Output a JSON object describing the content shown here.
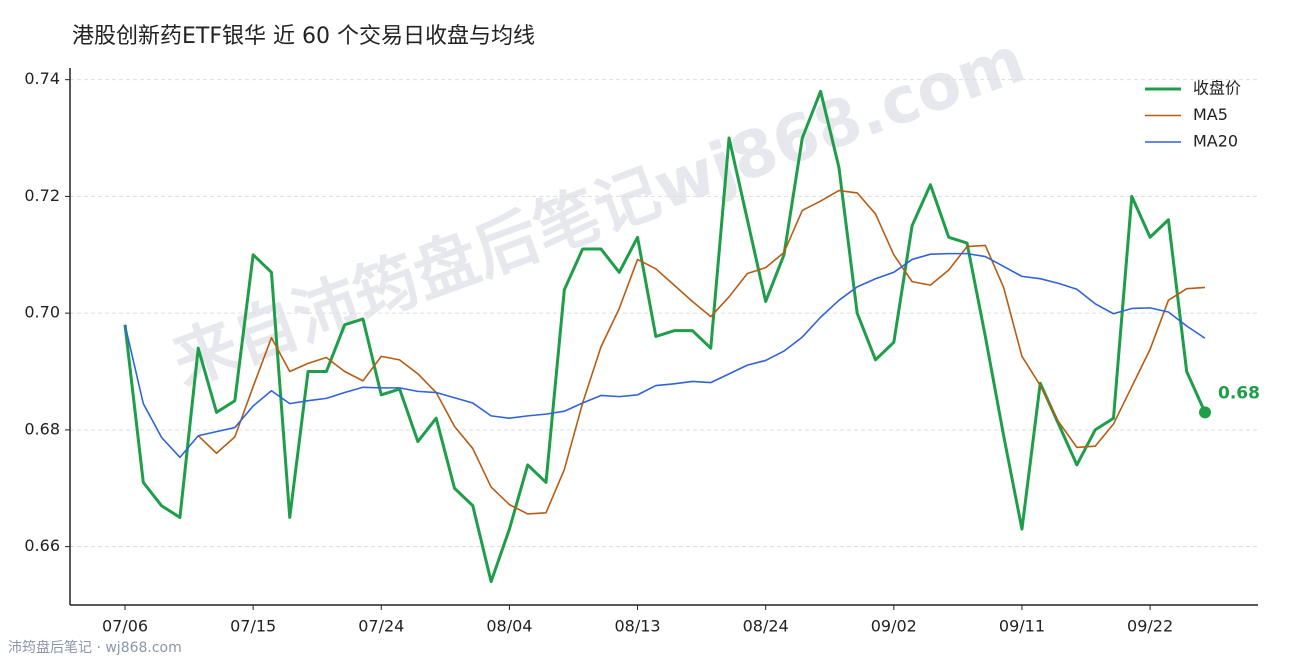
{
  "chart_data": {
    "type": "line",
    "title": "港股创新药ETF银华 近 60 个交易日收盘与均线",
    "categories": [
      "07/06",
      null,
      null,
      null,
      null,
      null,
      null,
      "07/15",
      null,
      null,
      null,
      null,
      null,
      null,
      "07/24",
      null,
      null,
      null,
      null,
      null,
      null,
      "08/04",
      null,
      null,
      null,
      null,
      null,
      null,
      "08/13",
      null,
      null,
      null,
      null,
      null,
      null,
      "08/24",
      null,
      null,
      null,
      null,
      null,
      null,
      "09/02",
      null,
      null,
      null,
      null,
      null,
      null,
      "09/11",
      null,
      null,
      null,
      null,
      null,
      null,
      "09/22",
      null,
      null,
      null
    ],
    "series": [
      {
        "name": "收盘价",
        "color": "#1e9e48",
        "width": 3,
        "values": [
          0.698,
          0.671,
          0.667,
          0.665,
          0.694,
          0.683,
          0.685,
          0.71,
          0.707,
          0.665,
          0.69,
          0.69,
          0.698,
          0.699,
          0.686,
          0.687,
          0.678,
          0.682,
          0.67,
          0.667,
          0.654,
          0.663,
          0.674,
          0.671,
          0.704,
          0.711,
          0.711,
          0.707,
          0.713,
          0.696,
          0.697,
          0.697,
          0.694,
          0.73,
          0.716,
          0.702,
          0.71,
          0.73,
          0.738,
          0.725,
          0.7,
          0.692,
          0.695,
          0.715,
          0.722,
          0.713,
          0.712,
          0.696,
          0.679,
          0.663,
          0.688,
          0.681,
          0.674,
          0.68,
          0.682,
          0.72,
          0.713,
          0.716,
          0.69,
          0.683
        ]
      },
      {
        "name": "MA5",
        "color": "#b85c14",
        "width": 1.6,
        "values": [
          null,
          null,
          null,
          null,
          0.679,
          0.676,
          0.6788,
          0.6874,
          0.6958,
          0.69,
          0.6914,
          0.6924,
          0.69,
          0.6884,
          0.6926,
          0.692,
          0.6896,
          0.6864,
          0.6806,
          0.6768,
          0.6702,
          0.6672,
          0.6656,
          0.6658,
          0.6732,
          0.6846,
          0.6942,
          0.7008,
          0.7092,
          0.7076,
          0.7048,
          0.702,
          0.6994,
          0.7028,
          0.7068,
          0.7078,
          0.7104,
          0.7176,
          0.7192,
          0.721,
          0.7206,
          0.717,
          0.71,
          0.7054,
          0.7048,
          0.7074,
          0.7114,
          0.7116,
          0.7044,
          0.6926,
          0.6876,
          0.6814,
          0.677,
          0.6772,
          0.681,
          0.6874,
          0.6938,
          0.7022,
          0.7042,
          0.7044
        ]
      },
      {
        "name": "MA20",
        "color": "#2f64d8",
        "width": 1.6,
        "values": [
          0.698,
          0.6845,
          0.6787,
          0.6753,
          0.679,
          0.6797,
          0.6804,
          0.6841,
          0.6867,
          0.6845,
          0.685,
          0.6854,
          0.6864,
          0.6873,
          0.6872,
          0.6872,
          0.6866,
          0.6864,
          0.6855,
          0.6846,
          0.6824,
          0.682,
          0.6824,
          0.6827,
          0.6832,
          0.6846,
          0.6859,
          0.6857,
          0.686,
          0.6876,
          0.6879,
          0.6883,
          0.6881,
          0.6896,
          0.6911,
          0.6919,
          0.6935,
          0.6959,
          0.6993,
          0.7022,
          0.7045,
          0.7059,
          0.707,
          0.7092,
          0.7101,
          0.7102,
          0.7102,
          0.7097,
          0.708,
          0.7063,
          0.7059,
          0.7051,
          0.7041,
          0.7016,
          0.6999,
          0.7008,
          0.7009,
          0.7002,
          0.6978,
          0.6957
        ]
      }
    ],
    "ylim": [
      0.65,
      0.742
    ],
    "yticks": [
      0.66,
      0.68,
      {
        "value": 0.7,
        "label": "0.70"
      },
      0.72,
      0.74
    ],
    "grid": true,
    "legend": "upper-right",
    "annotation": "0.68"
  },
  "watermark": "来自沛筠盘后笔记wj868.com",
  "footer": "沛筠盘后笔记 · wj868.com"
}
